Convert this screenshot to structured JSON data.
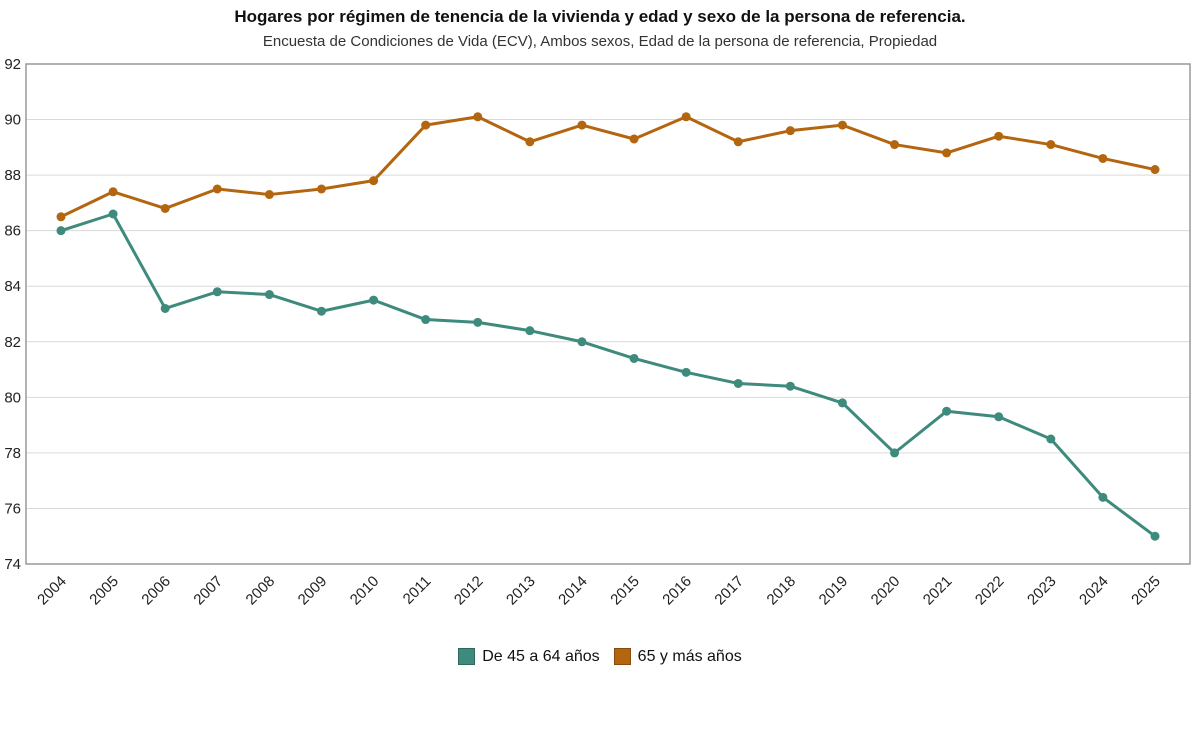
{
  "title": "Hogares por régimen de tenencia de la vivienda y edad y sexo de la persona de referencia.",
  "subtitle": "Encuesta de Condiciones de Vida (ECV), Ambos sexos, Edad de la persona de referencia, Propiedad",
  "chart_data": {
    "type": "line",
    "title": "Hogares por régimen de tenencia de la vivienda y edad y sexo de la persona de referencia.",
    "subtitle": "Encuesta de Condiciones de Vida (ECV), Ambos sexos, Edad de la persona de referencia, Propiedad",
    "categories": [
      "2004",
      "2005",
      "2006",
      "2007",
      "2008",
      "2009",
      "2010",
      "2011",
      "2012",
      "2013",
      "2014",
      "2015",
      "2016",
      "2017",
      "2018",
      "2019",
      "2020",
      "2021",
      "2022",
      "2023",
      "2024",
      "2025"
    ],
    "series": [
      {
        "name": "De 45 a 64 años",
        "color": "#3E8A7D",
        "values": [
          86.0,
          86.6,
          83.2,
          83.8,
          83.7,
          83.1,
          83.5,
          82.8,
          82.7,
          82.4,
          82.0,
          81.4,
          80.9,
          80.5,
          80.4,
          79.8,
          78.0,
          79.5,
          79.3,
          78.5,
          76.4,
          75.0
        ]
      },
      {
        "name": "65 y más años",
        "color": "#B4650F",
        "values": [
          86.5,
          87.4,
          86.8,
          87.5,
          87.3,
          87.5,
          87.8,
          89.8,
          90.1,
          89.2,
          89.8,
          89.3,
          90.1,
          89.2,
          89.6,
          89.8,
          89.1,
          88.8,
          89.4,
          89.1,
          88.6,
          88.2
        ]
      }
    ],
    "xlabel": "",
    "ylabel": "",
    "ylim": [
      74,
      92
    ],
    "ytick_step": 2,
    "grid": true,
    "grid_color": "#d9d9d9",
    "plot_border_color": "#999999",
    "legend_position": "bottom"
  }
}
